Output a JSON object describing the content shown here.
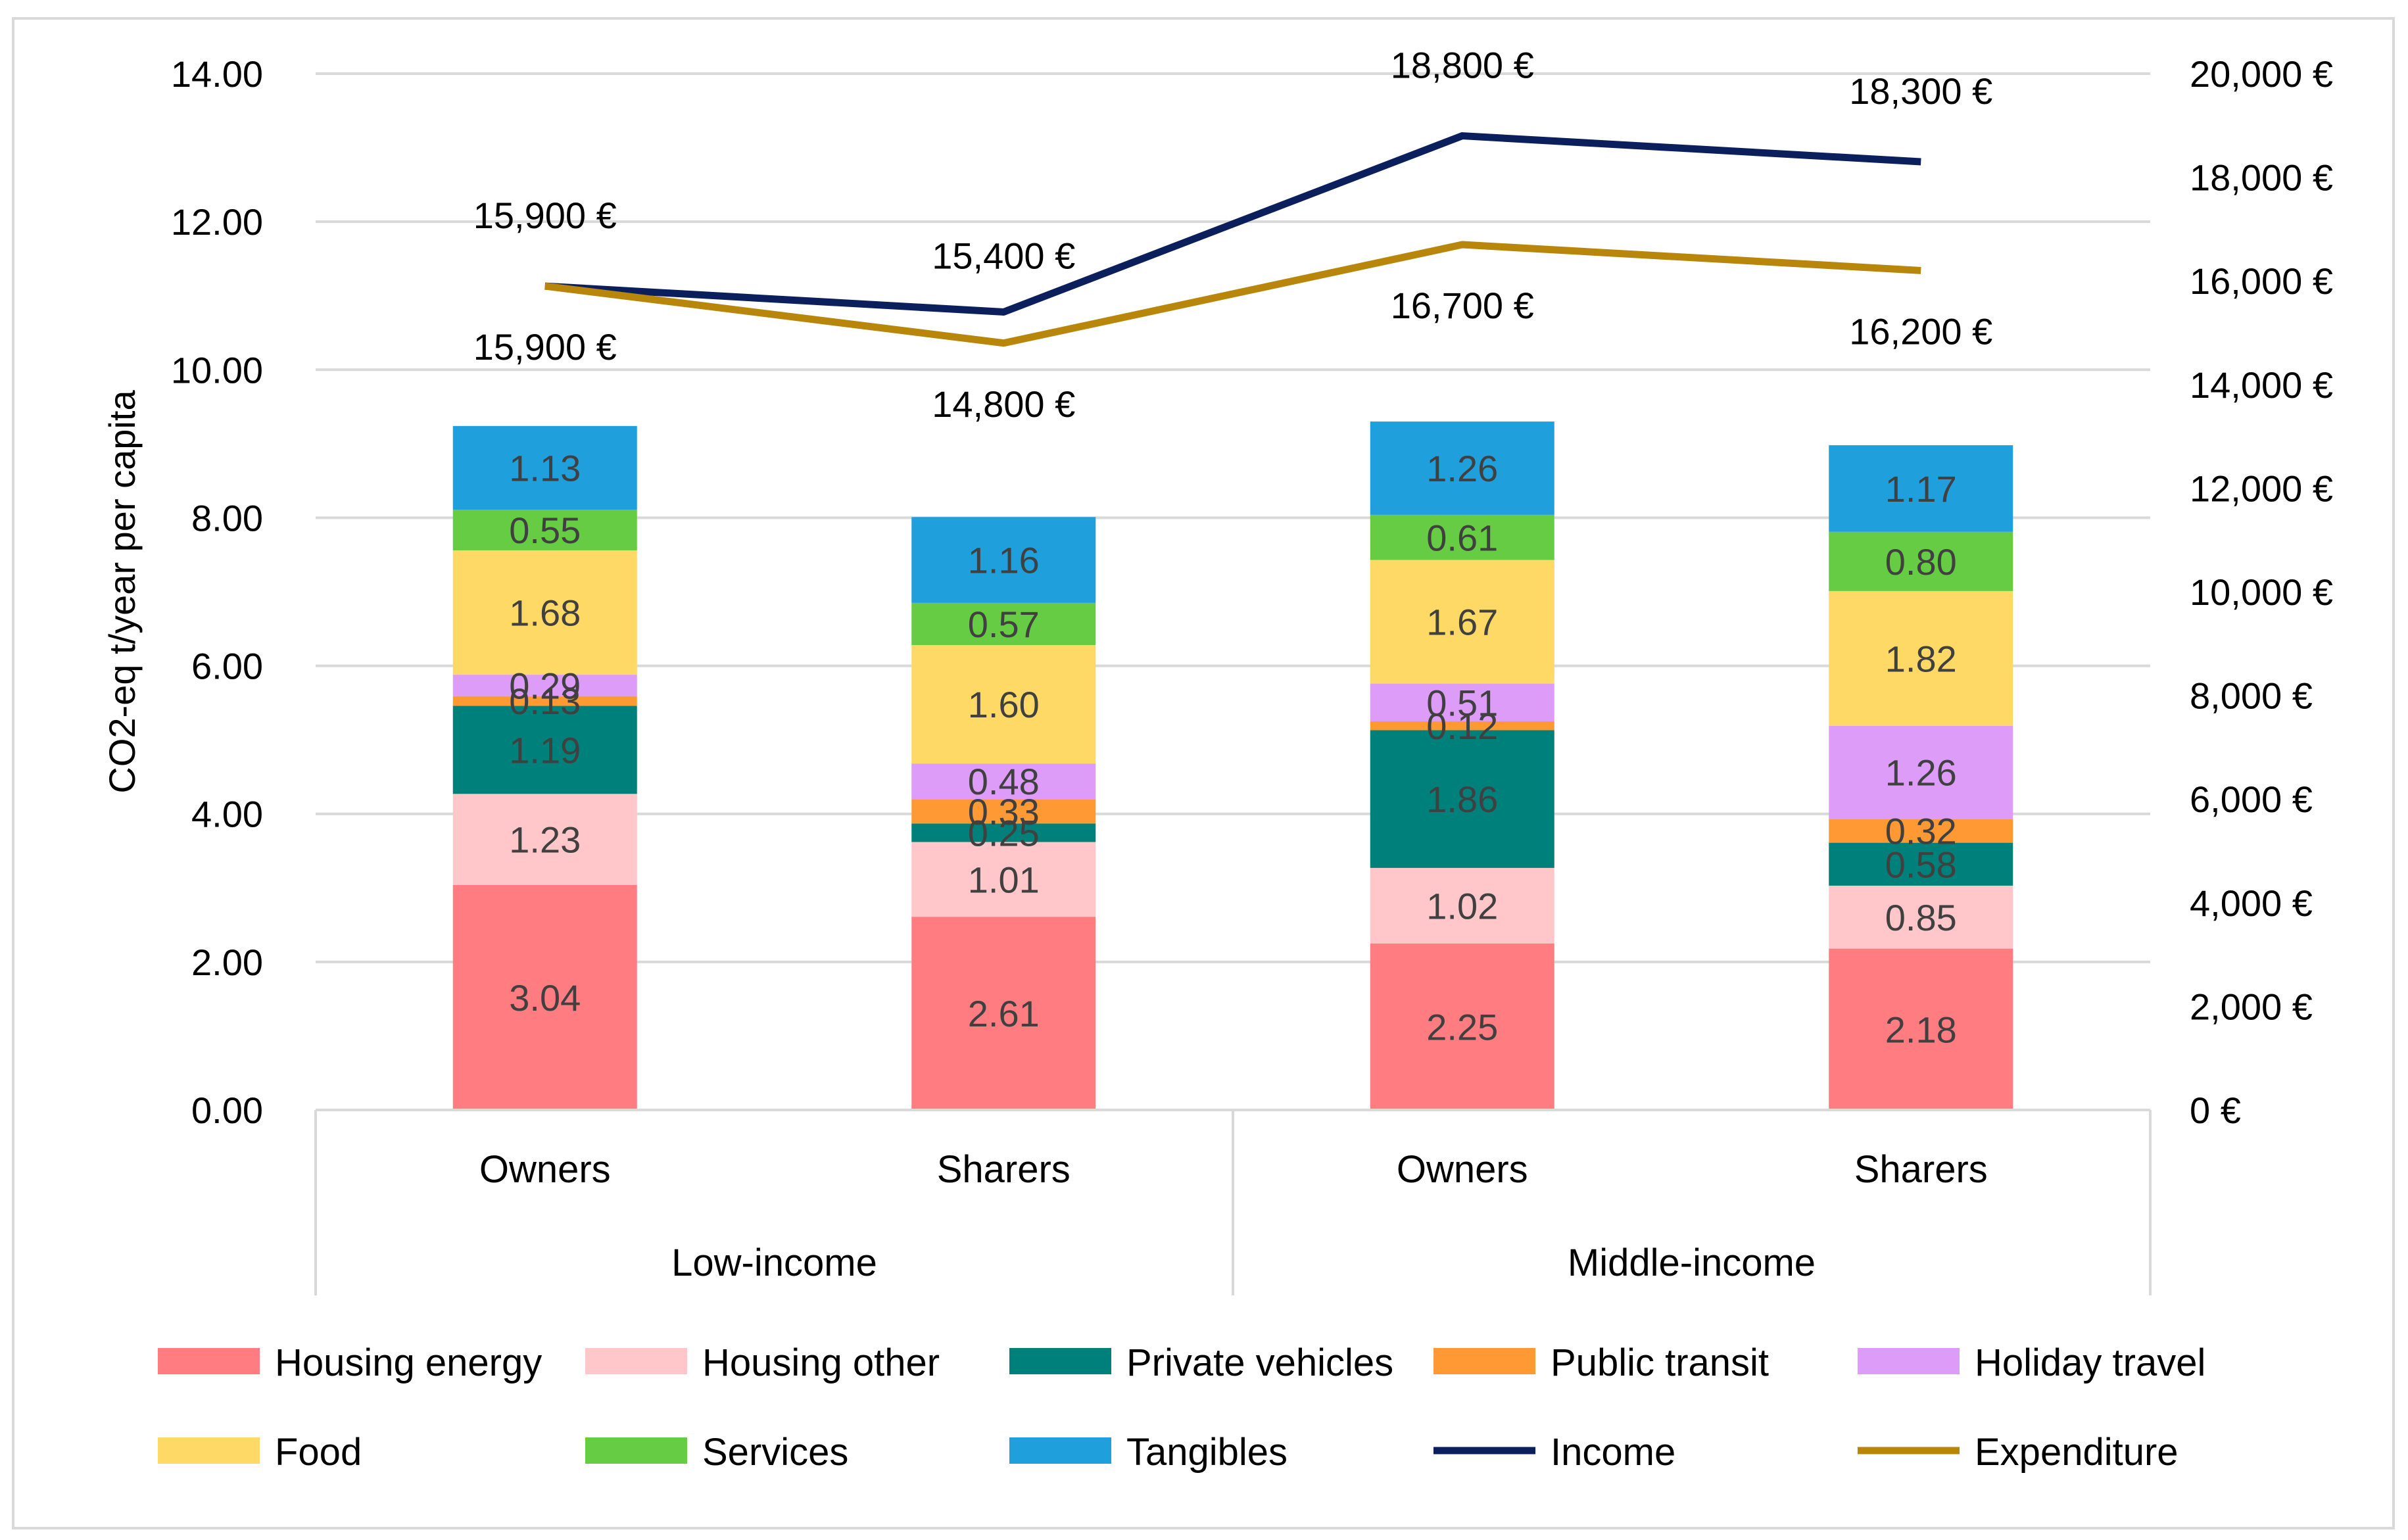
{
  "chart_data": {
    "type": "bar",
    "stacked": true,
    "categories": [
      "Owners",
      "Sharers",
      "Owners",
      "Sharers"
    ],
    "groups": [
      {
        "label": "Low-income",
        "members": [
          0,
          1
        ]
      },
      {
        "label": "Middle-income",
        "members": [
          2,
          3
        ]
      }
    ],
    "ylabel": "CO2-eq t/year per capita",
    "ylim": [
      0,
      14
    ],
    "y_ticks": [
      "0.00",
      "2.00",
      "4.00",
      "6.00",
      "8.00",
      "10.00",
      "12.00",
      "14.00"
    ],
    "y2lim": [
      0,
      20000
    ],
    "y2_ticks": [
      "0 €",
      "2,000 €",
      "4,000 €",
      "6,000 €",
      "8,000 €",
      "10,000 €",
      "12,000 €",
      "14,000 €",
      "16,000 €",
      "18,000 €",
      "20,000 €"
    ],
    "grid": true,
    "legend_position": "bottom",
    "series": [
      {
        "name": "Housing energy",
        "color": "#ff7c80",
        "values": [
          3.04,
          2.61,
          2.25,
          2.18
        ],
        "labels": [
          "3.04",
          "2.61",
          "2.25",
          "2.18"
        ]
      },
      {
        "name": "Housing other",
        "color": "#ffc7c9",
        "values": [
          1.23,
          1.01,
          1.02,
          0.85
        ],
        "labels": [
          "1.23",
          "1.01",
          "1.02",
          "0.85"
        ]
      },
      {
        "name": "Private vehicles",
        "color": "#00807a",
        "values": [
          1.19,
          0.25,
          1.86,
          0.58
        ],
        "labels": [
          "1.19",
          "0.25",
          "1.86",
          "0.58"
        ]
      },
      {
        "name": "Public transit",
        "color": "#ff9933",
        "values": [
          0.13,
          0.33,
          0.12,
          0.32
        ],
        "labels": [
          "0.13",
          "0.33",
          "0.12",
          "0.32"
        ]
      },
      {
        "name": "Holiday travel",
        "color": "#dd9cf7",
        "values": [
          0.29,
          0.48,
          0.51,
          1.26
        ],
        "labels": [
          "0.29",
          "0.48",
          "0.51",
          "1.26"
        ]
      },
      {
        "name": "Food",
        "color": "#ffd966",
        "values": [
          1.68,
          1.6,
          1.67,
          1.82
        ],
        "labels": [
          "1.68",
          "1.60",
          "1.67",
          "1.82"
        ]
      },
      {
        "name": "Services",
        "color": "#66cc44",
        "values": [
          0.55,
          0.57,
          0.61,
          0.8
        ],
        "labels": [
          "0.55",
          "0.57",
          "0.61",
          "0.80"
        ]
      },
      {
        "name": "Tangibles",
        "color": "#1fa0dc",
        "values": [
          1.13,
          1.16,
          1.26,
          1.17
        ],
        "labels": [
          "1.13",
          "1.16",
          "1.26",
          "1.17"
        ]
      }
    ],
    "lines": [
      {
        "name": "Income",
        "color": "#0b1f5c",
        "axis": "secondary",
        "values": [
          15900,
          15400,
          18800,
          18300
        ],
        "labels": [
          "15,900 €",
          "15,400 €",
          "18,800 €",
          "18,300 €"
        ]
      },
      {
        "name": "Expenditure",
        "color": "#b8860b",
        "axis": "secondary",
        "values": [
          15900,
          14800,
          16700,
          16200
        ],
        "labels": [
          "15,900 €",
          "14,800 €",
          "16,700 €",
          "16,200 €"
        ]
      }
    ]
  }
}
